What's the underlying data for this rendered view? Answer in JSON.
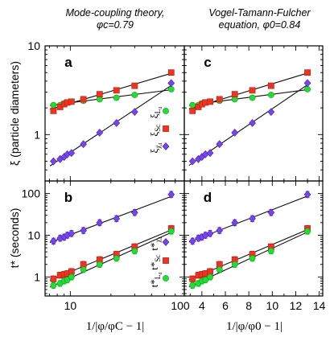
{
  "titles": {
    "left": [
      "Mode-coupling theory,",
      "φc=0.79"
    ],
    "right": [
      "Vogel-Tamann-Fulcher",
      "equation, φ0=0.84"
    ]
  },
  "colors": {
    "L4": "#22dd33",
    "Sc": "#ee3322",
    "chi4": "#7744ee",
    "fit_line": "#111111",
    "axis": "#000000"
  },
  "chart_data": [
    {
      "type": "scatter",
      "panel": "a",
      "xscale": "log",
      "yscale": "log",
      "xlim": [
        6.5,
        70
      ],
      "ylim": [
        0.3,
        10
      ],
      "ylabel": "ξ (particle diameters)",
      "yticks": [
        "1",
        "10"
      ],
      "xticks": [],
      "legend": [
        "ξ L4",
        "ξ Sc",
        "ξ χ4"
      ],
      "series": [
        {
          "key": "L4",
          "x": [
            7.5,
            8.4,
            9.0,
            9.5,
            10.2,
            12.5,
            16.5,
            22,
            30,
            56
          ],
          "y": [
            2.15,
            2.15,
            2.25,
            2.3,
            2.35,
            2.4,
            2.5,
            2.6,
            2.8,
            3.25
          ]
        },
        {
          "key": "Sc",
          "x": [
            7.5,
            8.4,
            9.0,
            9.5,
            10.2,
            12.5,
            16.5,
            22,
            30,
            56
          ],
          "y": [
            1.85,
            2.05,
            2.2,
            2.3,
            2.35,
            2.5,
            2.85,
            3.15,
            3.55,
            5.0
          ]
        },
        {
          "key": "chi4",
          "x": [
            7.5,
            8.4,
            9.0,
            9.5,
            10.2,
            12.5,
            16.5,
            22,
            30,
            56
          ],
          "y": [
            0.5,
            0.53,
            0.56,
            0.6,
            0.62,
            0.78,
            1.05,
            1.35,
            1.8,
            3.8
          ]
        }
      ]
    },
    {
      "type": "scatter",
      "panel": "c",
      "xscale": "linear",
      "yscale": "log",
      "xlim": [
        2.5,
        14.3
      ],
      "ylim": [
        0.3,
        10
      ],
      "yticks": [],
      "xticks": [],
      "series": [
        {
          "key": "L4",
          "x": [
            3.2,
            3.7,
            4.0,
            4.3,
            4.7,
            5.5,
            6.8,
            8.3,
            9.9,
            13.0
          ],
          "y": [
            2.15,
            2.15,
            2.25,
            2.3,
            2.35,
            2.4,
            2.5,
            2.6,
            2.8,
            3.25
          ]
        },
        {
          "key": "Sc",
          "x": [
            3.2,
            3.7,
            4.0,
            4.3,
            4.7,
            5.5,
            6.8,
            8.3,
            9.9,
            13.0
          ],
          "y": [
            1.85,
            2.05,
            2.2,
            2.3,
            2.35,
            2.5,
            2.85,
            3.15,
            3.55,
            5.0
          ]
        },
        {
          "key": "chi4",
          "x": [
            3.2,
            3.7,
            4.0,
            4.3,
            4.7,
            5.5,
            6.8,
            8.3,
            9.9,
            13.0
          ],
          "y": [
            0.5,
            0.53,
            0.56,
            0.6,
            0.62,
            0.78,
            1.05,
            1.35,
            1.8,
            3.8
          ]
        }
      ]
    },
    {
      "type": "scatter",
      "panel": "b",
      "xscale": "log",
      "yscale": "log",
      "xlim": [
        6.5,
        70
      ],
      "ylim": [
        0.35,
        200
      ],
      "ylabel": "t* (seconds)",
      "xlabel": "1/|φ/φC − 1|",
      "yticks": [
        "1",
        "10",
        "100"
      ],
      "xticks": [
        "10"
      ],
      "legend": [
        "t* χ4",
        "t* Sc",
        "t* L4"
      ],
      "series": [
        {
          "key": "chi4",
          "x": [
            7.5,
            8.4,
            9.0,
            9.5,
            10.2,
            12.5,
            16.5,
            22,
            30,
            56
          ],
          "y": [
            7.2,
            8.5,
            9.0,
            10.0,
            11.0,
            13.0,
            20.0,
            25.0,
            35.0,
            95.0
          ]
        },
        {
          "key": "Sc",
          "x": [
            7.5,
            8.4,
            9.0,
            9.5,
            10.2,
            12.5,
            16.5,
            22,
            30,
            56
          ],
          "y": [
            0.9,
            1.1,
            1.15,
            1.2,
            1.35,
            2.0,
            2.6,
            3.5,
            5.3,
            14.5
          ]
        },
        {
          "key": "L4",
          "x": [
            7.5,
            8.4,
            9.0,
            9.5,
            10.2,
            12.5,
            16.5,
            22,
            30,
            56
          ],
          "y": [
            0.63,
            0.7,
            0.8,
            0.85,
            1.0,
            1.5,
            2.0,
            2.8,
            4.2,
            12.5
          ]
        }
      ]
    },
    {
      "type": "scatter",
      "panel": "d",
      "xscale": "linear",
      "yscale": "log",
      "xlim": [
        2.5,
        14.3
      ],
      "ylim": [
        0.35,
        200
      ],
      "xlabel": "1/|φ/φ0 − 1|",
      "yticks": [],
      "xticks": [
        "100",
        "4",
        "6",
        "8",
        "10",
        "12",
        "14"
      ],
      "series": [
        {
          "key": "chi4",
          "x": [
            3.2,
            3.7,
            4.0,
            4.3,
            4.7,
            5.5,
            6.8,
            8.3,
            9.9,
            13.0
          ],
          "y": [
            7.2,
            8.5,
            9.0,
            10.0,
            11.0,
            13.0,
            20.0,
            25.0,
            35.0,
            95.0
          ]
        },
        {
          "key": "Sc",
          "x": [
            3.2,
            3.7,
            4.0,
            4.3,
            4.7,
            5.5,
            6.8,
            8.3,
            9.9,
            13.0
          ],
          "y": [
            0.9,
            1.1,
            1.15,
            1.2,
            1.35,
            2.0,
            2.6,
            3.5,
            5.3,
            14.5
          ]
        },
        {
          "key": "L4",
          "x": [
            3.2,
            3.7,
            4.0,
            4.3,
            4.7,
            5.5,
            6.8,
            8.3,
            9.9,
            13.0
          ],
          "y": [
            0.63,
            0.7,
            0.8,
            0.85,
            1.0,
            1.5,
            2.0,
            2.8,
            4.2,
            12.5
          ]
        }
      ]
    }
  ]
}
